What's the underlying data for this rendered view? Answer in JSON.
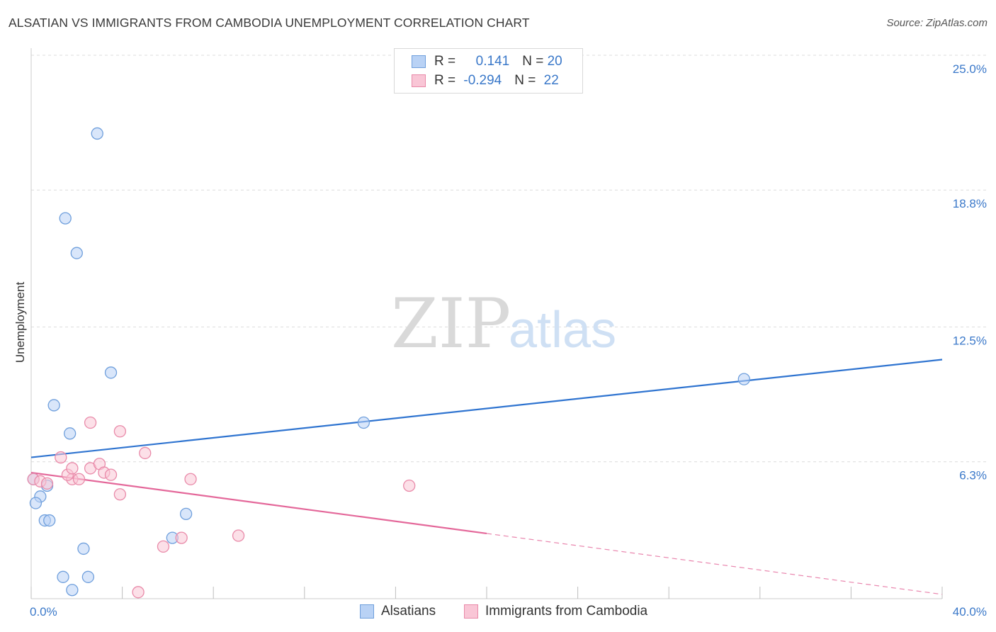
{
  "title": "ALSATIAN VS IMMIGRANTS FROM CAMBODIA UNEMPLOYMENT CORRELATION CHART",
  "source": "Source: ZipAtlas.com",
  "watermark": {
    "zip": "ZIP",
    "atlas": "atlas"
  },
  "legend": {
    "rows": [
      {
        "r_label": "R = ",
        "r_value": " 0.141",
        "n_label": "N = ",
        "n_value": "20",
        "color": "#b9d2f5",
        "border": "#6f9fdc"
      },
      {
        "r_label": "R = ",
        "r_value": "-0.294",
        "n_label": "N = ",
        "n_value": "22",
        "color": "#f9c6d6",
        "border": "#e98aa9"
      }
    ]
  },
  "bottom_legend": [
    {
      "label": "Alsatians",
      "color": "#b9d2f5",
      "border": "#6f9fdc"
    },
    {
      "label": "Immigrants from Cambodia",
      "color": "#f9c6d6",
      "border": "#e98aa9"
    }
  ],
  "chart_data": {
    "type": "scatter",
    "title": "ALSATIAN VS IMMIGRANTS FROM CAMBODIA UNEMPLOYMENT CORRELATION CHART",
    "xlabel": "",
    "ylabel": "Unemployment",
    "xlim": [
      0,
      40
    ],
    "ylim": [
      0,
      25
    ],
    "x_tick_labels": [
      {
        "value": 0,
        "label": "0.0%"
      },
      {
        "value": 40,
        "label": "40.0%"
      }
    ],
    "y_tick_labels": [
      {
        "value": 6.3,
        "label": "6.3%"
      },
      {
        "value": 12.5,
        "label": "12.5%"
      },
      {
        "value": 18.8,
        "label": "18.8%"
      },
      {
        "value": 25.0,
        "label": "25.0%"
      }
    ],
    "series": [
      {
        "name": "Alsatians",
        "color": "#6f9fdc",
        "fill": "#b9d2f5",
        "points": [
          [
            2.9,
            21.4
          ],
          [
            1.5,
            17.5
          ],
          [
            2.0,
            15.9
          ],
          [
            3.5,
            10.4
          ],
          [
            1.0,
            8.9
          ],
          [
            1.7,
            7.6
          ],
          [
            14.6,
            8.1
          ],
          [
            31.3,
            10.1
          ],
          [
            0.7,
            5.2
          ],
          [
            0.4,
            4.7
          ],
          [
            0.2,
            4.4
          ],
          [
            0.6,
            3.6
          ],
          [
            0.8,
            3.6
          ],
          [
            6.8,
            3.9
          ],
          [
            6.2,
            2.8
          ],
          [
            2.3,
            2.3
          ],
          [
            1.4,
            1.0
          ],
          [
            2.5,
            1.0
          ],
          [
            1.8,
            0.4
          ],
          [
            0.1,
            5.5
          ]
        ],
        "trend": {
          "x0": 0,
          "y0": 6.5,
          "x1": 40,
          "y1": 11.0,
          "style": "solid"
        }
      },
      {
        "name": "Immigrants from Cambodia",
        "color": "#e98aa9",
        "fill": "#f9c6d6",
        "points": [
          [
            0.1,
            5.5
          ],
          [
            0.4,
            5.4
          ],
          [
            0.7,
            5.3
          ],
          [
            1.3,
            6.5
          ],
          [
            1.8,
            5.5
          ],
          [
            1.6,
            5.7
          ],
          [
            2.1,
            5.5
          ],
          [
            2.6,
            6.0
          ],
          [
            1.8,
            6.0
          ],
          [
            3.0,
            6.2
          ],
          [
            3.2,
            5.8
          ],
          [
            3.5,
            5.7
          ],
          [
            2.6,
            8.1
          ],
          [
            3.9,
            7.7
          ],
          [
            5.0,
            6.7
          ],
          [
            3.9,
            4.8
          ],
          [
            7.0,
            5.5
          ],
          [
            16.6,
            5.2
          ],
          [
            9.1,
            2.9
          ],
          [
            5.8,
            2.4
          ],
          [
            6.6,
            2.8
          ],
          [
            4.7,
            0.3
          ]
        ],
        "trend": {
          "x0": 0,
          "y0": 5.8,
          "x1": 20,
          "y1": 3.0,
          "style": "solid",
          "extension": {
            "x0": 20,
            "y0": 3.0,
            "x1": 40,
            "y1": 0.2,
            "style": "dashed"
          }
        }
      }
    ],
    "grid": true,
    "legend_position": "top-center"
  }
}
